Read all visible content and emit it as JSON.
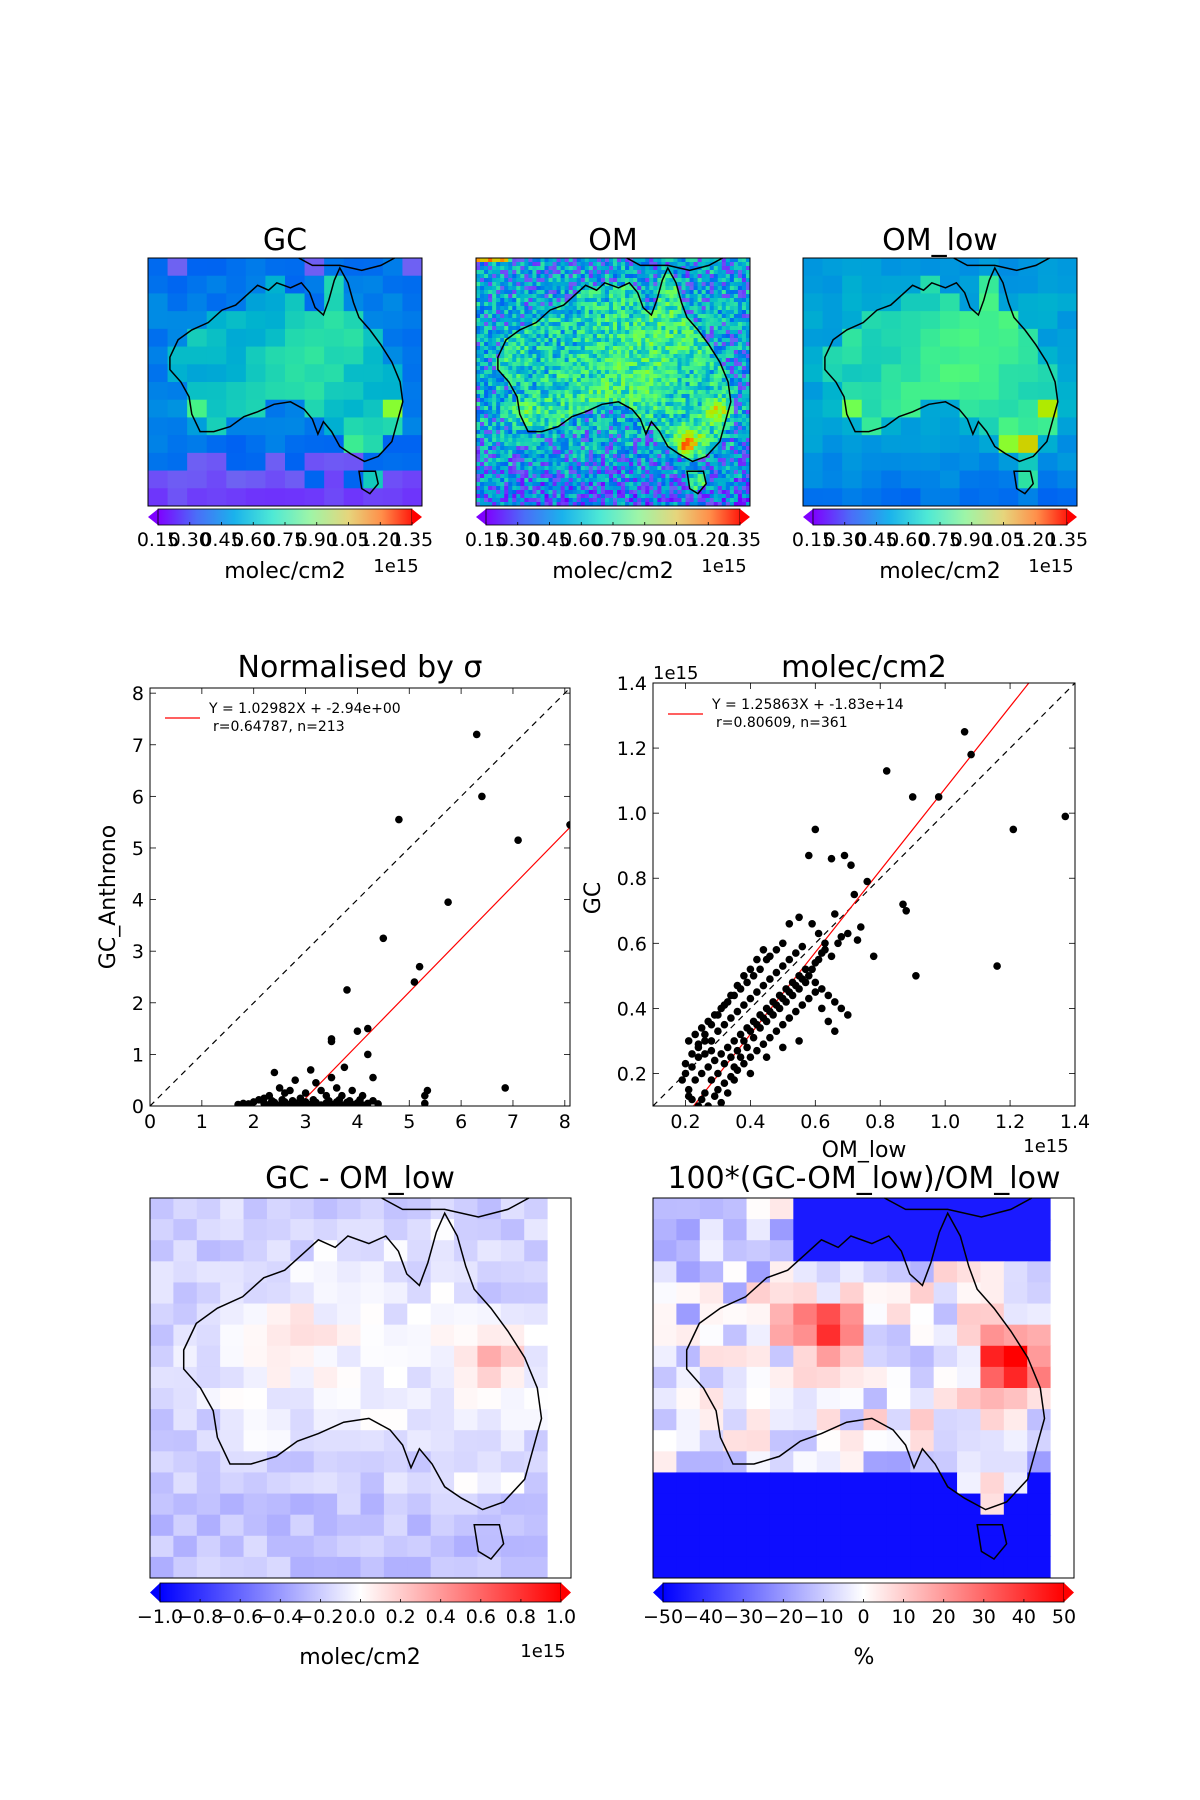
{
  "maps": {
    "gc": {
      "title": "GC",
      "cbar_ticks": [
        "0.15",
        "0.30",
        "0.45",
        "0.60",
        "0.75",
        "0.90",
        "1.05",
        "1.20",
        "1.35"
      ],
      "cbar_label": "molec/cm2",
      "cbar_exp": "1e15"
    },
    "om": {
      "title": "OM",
      "cbar_ticks": [
        "0.15",
        "0.30",
        "0.45",
        "0.60",
        "0.75",
        "0.90",
        "1.05",
        "1.20",
        "1.35"
      ],
      "cbar_label": "molec/cm2",
      "cbar_exp": "1e15"
    },
    "om_low": {
      "title": "OM_low",
      "cbar_ticks": [
        "0.15",
        "0.30",
        "0.45",
        "0.60",
        "0.75",
        "0.90",
        "1.05",
        "1.20",
        "1.35"
      ],
      "cbar_label": "molec/cm2",
      "cbar_exp": "1e15"
    },
    "diff": {
      "title": "GC - OM_low",
      "cbar_ticks": [
        "−1.0",
        "−0.8",
        "−0.6",
        "−0.4",
        "−0.2",
        "0.0",
        "0.2",
        "0.4",
        "0.6",
        "0.8",
        "1.0"
      ],
      "cbar_label": "molec/cm2",
      "cbar_exp": "1e15"
    },
    "pct": {
      "title": "100*(GC-OM_low)/OM_low",
      "cbar_ticks": [
        "−50",
        "−40",
        "−30",
        "−20",
        "−10",
        "0",
        "10",
        "20",
        "30",
        "40",
        "50"
      ],
      "cbar_label": "%",
      "cbar_exp": ""
    }
  },
  "chart_data": [
    {
      "type": "scatter",
      "title": "Normalised by σ",
      "xlabel": "",
      "ylabel": "GC_Anthrono",
      "xlim": [
        0,
        8.1
      ],
      "ylim": [
        0,
        8.1
      ],
      "xticks": [
        "0",
        "1",
        "2",
        "3",
        "4",
        "5",
        "6",
        "7",
        "8"
      ],
      "yticks": [
        "0",
        "1",
        "2",
        "3",
        "4",
        "5",
        "6",
        "7",
        "8"
      ],
      "legend": {
        "position": "top-left",
        "line1": "Y = 1.02982X + -2.94e+00",
        "line2": "r=0.64787, n=213"
      },
      "fit": {
        "slope": 1.02982,
        "intercept": -2.94
      },
      "points": [
        [
          6.3,
          7.2
        ],
        [
          6.4,
          6.0
        ],
        [
          4.8,
          5.55
        ],
        [
          7.1,
          5.15
        ],
        [
          8.1,
          5.45
        ],
        [
          5.75,
          3.95
        ],
        [
          4.5,
          3.25
        ],
        [
          5.2,
          2.7
        ],
        [
          5.1,
          2.4
        ],
        [
          3.8,
          2.25
        ],
        [
          4.0,
          1.45
        ],
        [
          4.2,
          1.5
        ],
        [
          3.5,
          1.3
        ],
        [
          3.5,
          1.25
        ],
        [
          4.2,
          1.0
        ],
        [
          3.1,
          0.7
        ],
        [
          2.4,
          0.65
        ],
        [
          3.75,
          0.75
        ],
        [
          4.3,
          0.55
        ],
        [
          3.5,
          0.55
        ],
        [
          2.8,
          0.5
        ],
        [
          3.2,
          0.45
        ],
        [
          6.85,
          0.35
        ],
        [
          5.35,
          0.3
        ],
        [
          5.3,
          0.2
        ],
        [
          2.5,
          0.35
        ],
        [
          2.7,
          0.3
        ],
        [
          2.3,
          0.2
        ],
        [
          2.2,
          0.15
        ],
        [
          2.6,
          0.25
        ],
        [
          3.0,
          0.25
        ],
        [
          3.3,
          0.3
        ],
        [
          3.6,
          0.35
        ],
        [
          3.9,
          0.3
        ],
        [
          2.9,
          0.15
        ],
        [
          3.4,
          0.2
        ],
        [
          3.7,
          0.2
        ],
        [
          4.1,
          0.2
        ],
        [
          2.0,
          0.08
        ],
        [
          2.1,
          0.12
        ],
        [
          1.7,
          0.03
        ],
        [
          1.8,
          0.05
        ],
        [
          1.9,
          0.04
        ],
        [
          2.2,
          0.05
        ],
        [
          2.4,
          0.07
        ],
        [
          2.6,
          0.08
        ],
        [
          2.8,
          0.06
        ],
        [
          3.0,
          0.08
        ],
        [
          3.2,
          0.07
        ],
        [
          3.4,
          0.06
        ],
        [
          3.6,
          0.08
        ],
        [
          3.8,
          0.07
        ],
        [
          4.0,
          0.06
        ],
        [
          4.2,
          0.05
        ],
        [
          4.4,
          0.04
        ],
        [
          2.3,
          0.03
        ],
        [
          2.5,
          0.02
        ],
        [
          2.7,
          0.03
        ],
        [
          2.9,
          0.02
        ],
        [
          3.1,
          0.03
        ],
        [
          3.3,
          0.02
        ],
        [
          3.5,
          0.03
        ],
        [
          3.7,
          0.02
        ],
        [
          3.9,
          0.03
        ],
        [
          4.1,
          0.02
        ],
        [
          4.3,
          0.1
        ],
        [
          2.35,
          0.1
        ],
        [
          2.55,
          0.12
        ],
        [
          2.75,
          0.1
        ],
        [
          3.15,
          0.12
        ],
        [
          3.45,
          0.1
        ],
        [
          3.65,
          0.12
        ],
        [
          3.85,
          0.1
        ],
        [
          4.05,
          0.12
        ],
        [
          5.3,
          0.05
        ]
      ]
    },
    {
      "type": "scatter",
      "title": "molec/cm2",
      "xlabel": "OM_low",
      "ylabel": "GC",
      "x_exp": "1e15",
      "y_exp": "1e15",
      "xlim": [
        0.1,
        1.4
      ],
      "ylim": [
        0.1,
        1.4
      ],
      "xticks": [
        "0.2",
        "0.4",
        "0.6",
        "0.8",
        "1.0",
        "1.2",
        "1.4"
      ],
      "yticks": [
        "0.2",
        "0.4",
        "0.6",
        "0.8",
        "1.0",
        "1.2",
        "1.4"
      ],
      "legend": {
        "position": "top-left",
        "line1": "Y = 1.25863X + -1.83e+14",
        "line2": "r=0.80609, n=361"
      },
      "fit": {
        "slope": 1.25863,
        "intercept": -0.183
      },
      "points": [
        [
          1.06,
          1.25
        ],
        [
          1.08,
          1.18
        ],
        [
          0.82,
          1.13
        ],
        [
          0.9,
          1.05
        ],
        [
          0.98,
          1.05
        ],
        [
          1.37,
          0.99
        ],
        [
          1.21,
          0.95
        ],
        [
          0.6,
          0.95
        ],
        [
          0.69,
          0.87
        ],
        [
          0.58,
          0.87
        ],
        [
          0.65,
          0.86
        ],
        [
          0.71,
          0.84
        ],
        [
          0.76,
          0.79
        ],
        [
          0.72,
          0.75
        ],
        [
          0.87,
          0.72
        ],
        [
          0.88,
          0.7
        ],
        [
          0.66,
          0.69
        ],
        [
          0.55,
          0.68
        ],
        [
          0.52,
          0.66
        ],
        [
          0.73,
          0.61
        ],
        [
          0.68,
          0.62
        ],
        [
          0.78,
          0.56
        ],
        [
          0.91,
          0.5
        ],
        [
          1.16,
          0.53
        ],
        [
          0.62,
          0.57
        ],
        [
          0.6,
          0.54
        ],
        [
          0.57,
          0.52
        ],
        [
          0.55,
          0.5
        ],
        [
          0.53,
          0.48
        ],
        [
          0.51,
          0.46
        ],
        [
          0.49,
          0.44
        ],
        [
          0.47,
          0.42
        ],
        [
          0.45,
          0.4
        ],
        [
          0.43,
          0.38
        ],
        [
          0.41,
          0.36
        ],
        [
          0.39,
          0.34
        ],
        [
          0.37,
          0.32
        ],
        [
          0.35,
          0.3
        ],
        [
          0.33,
          0.28
        ],
        [
          0.31,
          0.26
        ],
        [
          0.29,
          0.24
        ],
        [
          0.27,
          0.22
        ],
        [
          0.25,
          0.2
        ],
        [
          0.23,
          0.18
        ],
        [
          0.21,
          0.15
        ],
        [
          0.22,
          0.12
        ],
        [
          0.24,
          0.1
        ],
        [
          0.26,
          0.14
        ],
        [
          0.28,
          0.18
        ],
        [
          0.3,
          0.2
        ],
        [
          0.32,
          0.23
        ],
        [
          0.34,
          0.25
        ],
        [
          0.36,
          0.27
        ],
        [
          0.38,
          0.3
        ],
        [
          0.4,
          0.33
        ],
        [
          0.42,
          0.35
        ],
        [
          0.44,
          0.37
        ],
        [
          0.46,
          0.39
        ],
        [
          0.48,
          0.41
        ],
        [
          0.5,
          0.43
        ],
        [
          0.52,
          0.45
        ],
        [
          0.54,
          0.47
        ],
        [
          0.56,
          0.49
        ],
        [
          0.58,
          0.5
        ],
        [
          0.6,
          0.48
        ],
        [
          0.62,
          0.46
        ],
        [
          0.64,
          0.44
        ],
        [
          0.66,
          0.42
        ],
        [
          0.68,
          0.4
        ],
        [
          0.7,
          0.38
        ],
        [
          0.65,
          0.56
        ],
        [
          0.63,
          0.6
        ],
        [
          0.61,
          0.63
        ],
        [
          0.59,
          0.66
        ],
        [
          0.45,
          0.55
        ],
        [
          0.43,
          0.52
        ],
        [
          0.41,
          0.5
        ],
        [
          0.39,
          0.48
        ],
        [
          0.37,
          0.46
        ],
        [
          0.35,
          0.44
        ],
        [
          0.33,
          0.42
        ],
        [
          0.31,
          0.4
        ],
        [
          0.29,
          0.38
        ],
        [
          0.27,
          0.36
        ],
        [
          0.25,
          0.34
        ],
        [
          0.23,
          0.32
        ],
        [
          0.21,
          0.3
        ],
        [
          0.24,
          0.28
        ],
        [
          0.26,
          0.26
        ],
        [
          0.28,
          0.3
        ],
        [
          0.3,
          0.33
        ],
        [
          0.32,
          0.35
        ],
        [
          0.34,
          0.37
        ],
        [
          0.36,
          0.39
        ],
        [
          0.38,
          0.41
        ],
        [
          0.4,
          0.43
        ],
        [
          0.42,
          0.45
        ],
        [
          0.44,
          0.47
        ],
        [
          0.46,
          0.49
        ],
        [
          0.48,
          0.51
        ],
        [
          0.5,
          0.53
        ],
        [
          0.52,
          0.55
        ],
        [
          0.54,
          0.57
        ],
        [
          0.56,
          0.59
        ],
        [
          0.3,
          0.15
        ],
        [
          0.32,
          0.17
        ],
        [
          0.34,
          0.19
        ],
        [
          0.36,
          0.21
        ],
        [
          0.38,
          0.23
        ],
        [
          0.4,
          0.25
        ],
        [
          0.42,
          0.27
        ],
        [
          0.44,
          0.29
        ],
        [
          0.46,
          0.31
        ],
        [
          0.48,
          0.33
        ],
        [
          0.5,
          0.35
        ],
        [
          0.52,
          0.37
        ],
        [
          0.54,
          0.39
        ],
        [
          0.56,
          0.41
        ],
        [
          0.58,
          0.43
        ],
        [
          0.6,
          0.45
        ],
        [
          0.62,
          0.4
        ],
        [
          0.64,
          0.36
        ],
        [
          0.66,
          0.33
        ],
        [
          0.55,
          0.3
        ],
        [
          0.5,
          0.28
        ],
        [
          0.45,
          0.25
        ],
        [
          0.4,
          0.2
        ],
        [
          0.35,
          0.18
        ],
        [
          0.28,
          0.27
        ],
        [
          0.26,
          0.3
        ],
        [
          0.24,
          0.25
        ],
        [
          0.22,
          0.22
        ],
        [
          0.2,
          0.2
        ],
        [
          0.25,
          0.12
        ],
        [
          0.27,
          0.1
        ],
        [
          0.29,
          0.13
        ],
        [
          0.31,
          0.11
        ],
        [
          0.33,
          0.14
        ],
        [
          0.35,
          0.22
        ],
        [
          0.37,
          0.25
        ],
        [
          0.39,
          0.28
        ],
        [
          0.41,
          0.31
        ],
        [
          0.43,
          0.34
        ],
        [
          0.45,
          0.36
        ],
        [
          0.47,
          0.38
        ],
        [
          0.49,
          0.4
        ],
        [
          0.51,
          0.42
        ],
        [
          0.53,
          0.44
        ],
        [
          0.55,
          0.46
        ],
        [
          0.57,
          0.48
        ],
        [
          0.59,
          0.52
        ],
        [
          0.61,
          0.55
        ],
        [
          0.63,
          0.58
        ],
        [
          0.67,
          0.6
        ],
        [
          0.7,
          0.63
        ],
        [
          0.74,
          0.65
        ],
        [
          0.5,
          0.6
        ],
        [
          0.48,
          0.58
        ],
        [
          0.46,
          0.56
        ],
        [
          0.44,
          0.58
        ],
        [
          0.42,
          0.55
        ],
        [
          0.4,
          0.52
        ],
        [
          0.38,
          0.5
        ],
        [
          0.36,
          0.47
        ],
        [
          0.34,
          0.44
        ],
        [
          0.32,
          0.41
        ],
        [
          0.3,
          0.38
        ],
        [
          0.28,
          0.35
        ],
        [
          0.26,
          0.32
        ],
        [
          0.24,
          0.29
        ],
        [
          0.22,
          0.26
        ],
        [
          0.2,
          0.23
        ],
        [
          0.19,
          0.18
        ],
        [
          0.21,
          0.13
        ]
      ]
    }
  ]
}
